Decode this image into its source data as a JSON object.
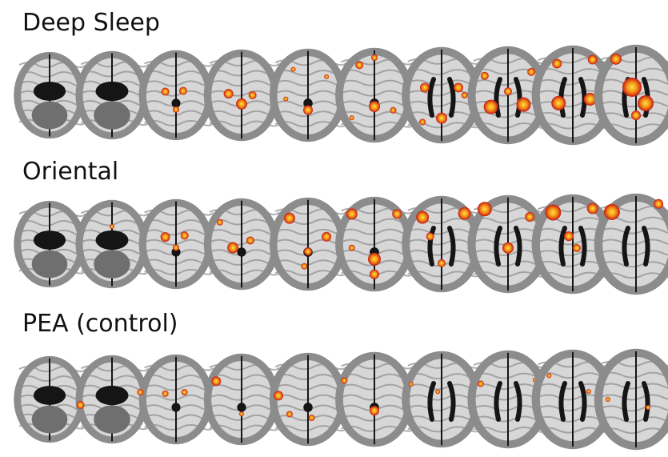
{
  "figure": {
    "rows": [
      {
        "label": "Deep Sleep",
        "slice_count": 10
      },
      {
        "label": "Oriental",
        "slice_count": 10
      },
      {
        "label": "PEA (control)",
        "slice_count": 10
      }
    ],
    "colors": {
      "background": "#ffffff",
      "gray_matter": "#8c8c8c",
      "white_matter": "#d7d7d7",
      "csf": "#151515",
      "activation_low": "#c2161a",
      "activation_mid": "#f28a12",
      "activation_high": "#ffe14a"
    }
  }
}
